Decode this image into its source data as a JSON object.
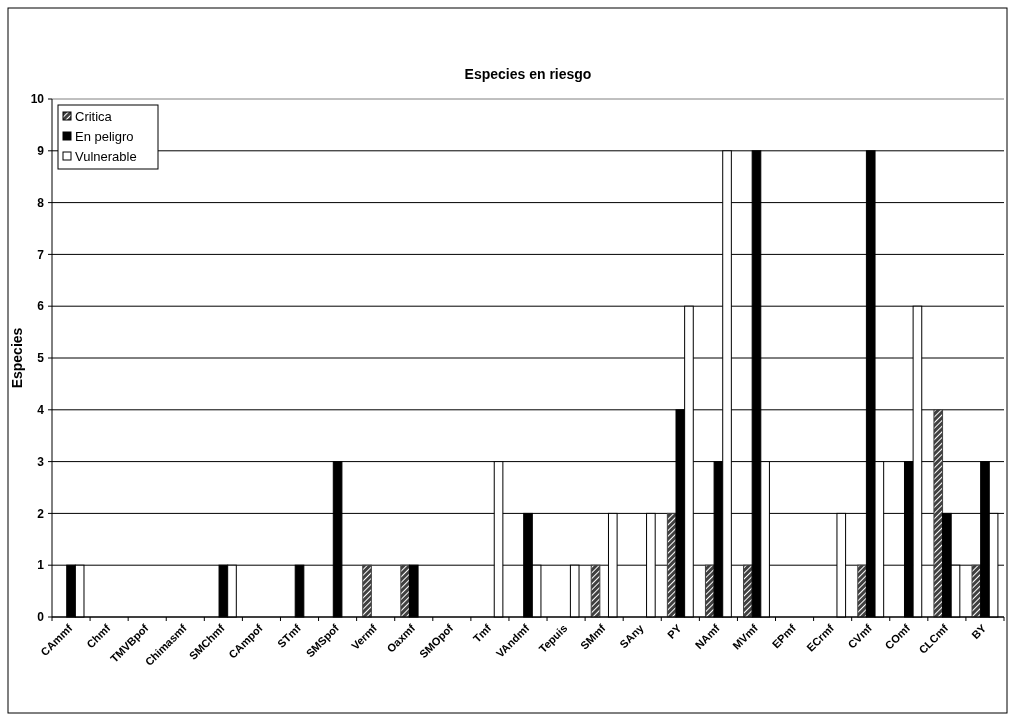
{
  "chart_data": {
    "type": "bar",
    "title": "Especies en riesgo",
    "ylabel": "Especies",
    "categories": [
      "CAmmf",
      "Chmf",
      "TMVBpof",
      "Chimasmf",
      "SMChmf",
      "CAmpof",
      "STmf",
      "SMSpof",
      "Vermf",
      "Oaxmf",
      "SMOpof",
      "Tmf",
      "VAndmf",
      "Tepuis",
      "SMmf",
      "SAny",
      "PY",
      "NAmf",
      "MVmf",
      "EPmf",
      "ECrmf",
      "CVmf",
      "COmf",
      "CLCmf",
      "BY"
    ],
    "series": [
      {
        "name": "Critica",
        "color": "#404040",
        "values": [
          0,
          0,
          0,
          0,
          0,
          0,
          0,
          0,
          1,
          1,
          0,
          0,
          0,
          0,
          1,
          0,
          2,
          1,
          1,
          0,
          0,
          1,
          0,
          4,
          1
        ]
      },
      {
        "name": "En peligro",
        "color": "#000000",
        "values": [
          1,
          0,
          0,
          0,
          1,
          0,
          1,
          3,
          0,
          1,
          0,
          0,
          2,
          0,
          0,
          0,
          4,
          3,
          9,
          0,
          0,
          9,
          3,
          2,
          3
        ]
      },
      {
        "name": "Vulnerable",
        "color": "#ffffff",
        "values": [
          1,
          0,
          0,
          0,
          1,
          0,
          0,
          0,
          0,
          0,
          0,
          3,
          1,
          1,
          2,
          2,
          6,
          9,
          3,
          0,
          2,
          3,
          6,
          1,
          2
        ]
      }
    ],
    "ylim": [
      0,
      10
    ],
    "yticks": [
      0,
      1,
      2,
      3,
      4,
      5,
      6,
      7,
      8,
      9,
      10
    ],
    "grid": "y",
    "legend": "top left"
  }
}
